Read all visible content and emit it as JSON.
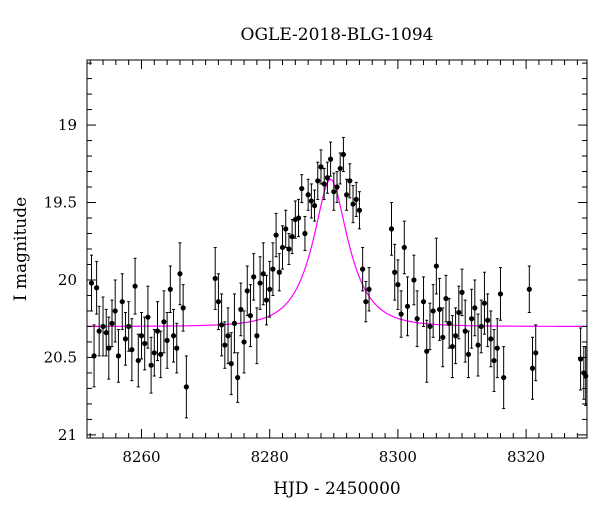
{
  "chart_data": {
    "type": "scatter",
    "title": "OGLE-2018-BLG-1094",
    "xlabel": "HJD - 2450000",
    "ylabel": "I magnitude",
    "xlim": [
      8251.5,
      8329.5
    ],
    "ylim": [
      21.02,
      18.58
    ],
    "y_inverted": true,
    "xticks": [
      8260,
      8280,
      8300,
      8320
    ],
    "xtick_labels": [
      "8260",
      "8280",
      "8300",
      "8320"
    ],
    "yticks": [
      19,
      19.5,
      20,
      20.5,
      21
    ],
    "ytick_labels": [
      "19",
      "19.5",
      "20",
      "20.5",
      "21"
    ],
    "x_minor_step": 2,
    "y_minor_step": 0.1,
    "grid": false,
    "colors": {
      "points": "#000000",
      "model": "#ff00ff"
    },
    "model": {
      "baseline": 20.3,
      "peak_mag": 19.35,
      "t0": 8289.5,
      "tE": 5
    },
    "series": [
      {
        "x": [
          8252.2,
          8252.6,
          8253.0,
          8253.4,
          8254.0,
          8254.5,
          8254.9,
          8255.4,
          8255.9,
          8256.4,
          8257.0,
          8257.5,
          8258.0,
          8258.5,
          8259.0,
          8259.5,
          8260.0,
          8260.5,
          8261.0,
          8261.5,
          8262.0,
          8262.5,
          8263.0,
          8263.5,
          8264.0,
          8264.5,
          8265.0,
          8265.5,
          8266.0,
          8266.5,
          8267.0,
          8271.5,
          8272.0,
          8272.5,
          8273.0,
          8273.5,
          8274.0,
          8274.5,
          8275.0,
          8275.5,
          8276.0,
          8276.5,
          8277.0,
          8277.5,
          8278.0,
          8278.5,
          8279.0,
          8279.5,
          8280.0,
          8280.5,
          8281.0,
          8281.5,
          8282.0,
          8282.5,
          8283.0,
          8283.5,
          8284.0,
          8284.5,
          8285.0,
          8285.5,
          8286.0,
          8286.5,
          8287.0,
          8287.5,
          8288.0,
          8288.5,
          8289.0,
          8289.5,
          8290.0,
          8290.5,
          8291.0,
          8291.5,
          8292.0,
          8292.5,
          8293.0,
          8293.5,
          8294.0,
          8294.5,
          8295.0,
          8295.5,
          8299.0,
          8299.5,
          8300.0,
          8300.5,
          8301.0,
          8301.5,
          8302.5,
          8303.0,
          8304.0,
          8304.5,
          8305.0,
          8305.5,
          8306.0,
          8306.5,
          8307.0,
          8307.5,
          8308.0,
          8308.5,
          8309.0,
          8309.5,
          8310.0,
          8310.5,
          8311.0,
          8311.5,
          8312.0,
          8312.5,
          8313.0,
          8313.5,
          8314.0,
          8314.5,
          8315.0,
          8315.5,
          8316.0,
          8316.5,
          8320.5,
          8321.0,
          8321.5,
          8328.5,
          8329.0,
          8329.3
        ],
        "y": [
          20.02,
          20.49,
          20.05,
          20.33,
          20.3,
          20.34,
          20.44,
          20.28,
          20.2,
          20.49,
          20.14,
          20.38,
          20.3,
          20.45,
          20.04,
          20.52,
          20.36,
          20.41,
          20.24,
          20.55,
          20.47,
          20.33,
          20.48,
          20.27,
          20.39,
          20.06,
          20.36,
          20.44,
          19.96,
          20.18,
          20.69,
          19.99,
          20.14,
          20.29,
          20.42,
          20.36,
          20.54,
          20.28,
          20.63,
          20.19,
          20.4,
          20.07,
          20.23,
          19.98,
          20.36,
          20.02,
          19.96,
          20.13,
          20.06,
          19.93,
          19.71,
          19.95,
          19.79,
          19.67,
          19.8,
          19.72,
          19.61,
          19.6,
          19.41,
          19.7,
          19.45,
          19.49,
          19.52,
          19.36,
          19.27,
          19.38,
          19.34,
          19.22,
          19.43,
          19.4,
          19.28,
          19.19,
          19.45,
          19.36,
          19.51,
          19.48,
          19.55,
          19.93,
          20.14,
          20.06,
          19.67,
          19.95,
          20.03,
          20.22,
          19.79,
          20.17,
          20.0,
          20.25,
          20.14,
          20.46,
          20.3,
          20.2,
          19.91,
          20.19,
          20.37,
          20.12,
          20.28,
          20.43,
          20.36,
          20.21,
          20.08,
          20.33,
          20.48,
          20.25,
          20.18,
          20.42,
          20.3,
          20.15,
          20.26,
          20.38,
          20.52,
          20.44,
          20.09,
          20.63,
          20.06,
          20.57,
          20.47,
          20.51,
          20.6,
          20.62
        ],
        "yerr": [
          0.18,
          0.2,
          0.17,
          0.16,
          0.19,
          0.15,
          0.2,
          0.15,
          0.2,
          0.17,
          0.18,
          0.17,
          0.16,
          0.2,
          0.18,
          0.17,
          0.15,
          0.17,
          0.2,
          0.18,
          0.15,
          0.19,
          0.15,
          0.2,
          0.18,
          0.15,
          0.17,
          0.16,
          0.2,
          0.15,
          0.2,
          0.2,
          0.18,
          0.2,
          0.15,
          0.18,
          0.2,
          0.19,
          0.16,
          0.17,
          0.2,
          0.16,
          0.2,
          0.15,
          0.18,
          0.17,
          0.2,
          0.16,
          0.18,
          0.17,
          0.14,
          0.12,
          0.14,
          0.12,
          0.1,
          0.11,
          0.12,
          0.12,
          0.09,
          0.11,
          0.1,
          0.11,
          0.1,
          0.12,
          0.11,
          0.1,
          0.1,
          0.11,
          0.12,
          0.1,
          0.1,
          0.11,
          0.1,
          0.11,
          0.12,
          0.11,
          0.12,
          0.14,
          0.13,
          0.14,
          0.17,
          0.18,
          0.16,
          0.15,
          0.17,
          0.19,
          0.16,
          0.18,
          0.16,
          0.2,
          0.15,
          0.17,
          0.18,
          0.2,
          0.19,
          0.15,
          0.16,
          0.2,
          0.18,
          0.17,
          0.15,
          0.2,
          0.15,
          0.19,
          0.18,
          0.2,
          0.17,
          0.2,
          0.17,
          0.18,
          0.2,
          0.19,
          0.17,
          0.2,
          0.15,
          0.2,
          0.18,
          0.2,
          0.17,
          0.19
        ]
      }
    ]
  }
}
